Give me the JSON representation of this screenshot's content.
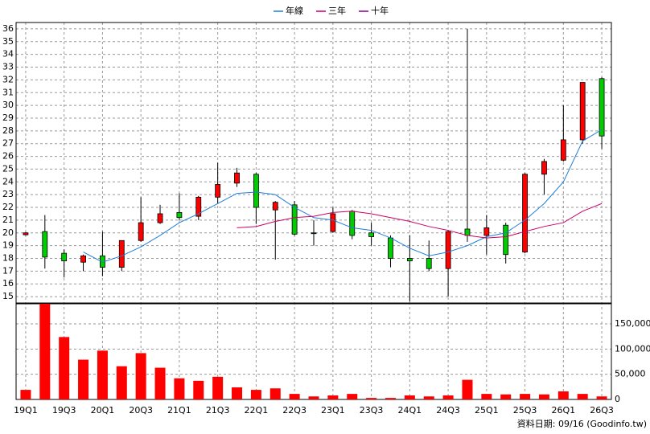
{
  "chart_data": [
    {
      "type": "candlestick",
      "categories": [
        "19Q1",
        null,
        "19Q3",
        null,
        "20Q1",
        null,
        "20Q3",
        null,
        "21Q1",
        null,
        "21Q3",
        null,
        "22Q1",
        null,
        "22Q3",
        null,
        "23Q1",
        null,
        "23Q3",
        null,
        "24Q1",
        null,
        "24Q3",
        null,
        "25Q1",
        null,
        "25Q3",
        null,
        "26Q1",
        null,
        "26Q3"
      ],
      "open": [
        19.85,
        20.1,
        18.4,
        17.7,
        18.2,
        17.3,
        19.4,
        20.8,
        21.6,
        21.3,
        22.8,
        23.9,
        24.6,
        21.8,
        22.2,
        20.0,
        20.1,
        21.7,
        20.0,
        19.6,
        18.0,
        18.0,
        17.2,
        20.3,
        19.8,
        20.6,
        18.5,
        24.6,
        25.7,
        27.3,
        32.1
      ],
      "high": [
        20.05,
        21.4,
        18.7,
        18.3,
        20.1,
        19.4,
        22.8,
        22.2,
        23.1,
        22.9,
        25.5,
        25.1,
        24.7,
        22.5,
        22.5,
        21.0,
        22.0,
        21.8,
        20.8,
        19.8,
        19.8,
        19.4,
        20.2,
        36.0,
        21.4,
        20.8,
        24.7,
        25.8,
        30.0,
        31.8,
        32.2
      ],
      "low": [
        19.8,
        17.2,
        16.5,
        17.0,
        16.6,
        17.0,
        19.3,
        20.7,
        21.0,
        21.0,
        22.3,
        23.6,
        20.7,
        17.9,
        19.8,
        19.0,
        20.0,
        19.5,
        19.0,
        17.3,
        14.6,
        17.0,
        15.0,
        19.3,
        18.3,
        17.6,
        18.4,
        23.0,
        25.6,
        27.0,
        26.6
      ],
      "close": [
        20.0,
        18.1,
        17.8,
        18.2,
        17.3,
        19.4,
        20.8,
        21.5,
        21.2,
        22.8,
        23.8,
        24.7,
        22.0,
        22.4,
        19.9,
        19.95,
        21.5,
        19.8,
        19.7,
        18.0,
        17.8,
        17.2,
        20.1,
        19.8,
        20.4,
        18.3,
        24.6,
        25.6,
        27.3,
        31.8,
        27.6
      ],
      "up_color": "#ff0000",
      "down_color": "#00cc00",
      "series": [
        {
          "name": "年線",
          "color": "#1e7fd8",
          "values": [
            null,
            null,
            null,
            18.5,
            17.7,
            18.2,
            18.9,
            19.8,
            20.8,
            21.5,
            22.3,
            23.1,
            23.2,
            23.0,
            22.0,
            21.2,
            21.0,
            20.4,
            20.2,
            19.6,
            18.8,
            18.2,
            18.5,
            19.0,
            19.7,
            20.0,
            21.0,
            22.3,
            24.0,
            27.2,
            28.1
          ]
        },
        {
          "name": "三年",
          "color": "#cc0066",
          "values": [
            null,
            null,
            null,
            null,
            null,
            null,
            null,
            null,
            null,
            null,
            null,
            20.4,
            20.5,
            20.9,
            21.2,
            21.3,
            21.6,
            21.7,
            21.5,
            21.2,
            20.9,
            20.5,
            20.2,
            19.8,
            19.6,
            19.7,
            20.1,
            20.5,
            20.8,
            21.7,
            22.3
          ]
        },
        {
          "name": "十年",
          "color": "#880088",
          "values": [
            null,
            null,
            null,
            null,
            null,
            null,
            null,
            null,
            null,
            null,
            null,
            null,
            null,
            null,
            null,
            null,
            null,
            null,
            null,
            null,
            null,
            null,
            null,
            null,
            null,
            null,
            null,
            null,
            null,
            null,
            null
          ]
        }
      ],
      "ylim": [
        14.5,
        36.5
      ],
      "yticks": [
        15,
        16,
        17,
        18,
        19,
        20,
        21,
        22,
        23,
        24,
        25,
        26,
        27,
        28,
        29,
        30,
        31,
        32,
        33,
        34,
        35,
        36
      ],
      "grid": true
    },
    {
      "type": "bar",
      "values": [
        19000,
        190000,
        124000,
        79000,
        97000,
        66000,
        92000,
        63000,
        42000,
        37000,
        45000,
        24000,
        19000,
        22000,
        11000,
        6000,
        8000,
        11000,
        3000,
        3000,
        8000,
        6000,
        8000,
        39000,
        11000,
        10000,
        11000,
        10000,
        16000,
        11000,
        6000
      ],
      "color": "#ff0000",
      "ylim": [
        0,
        190000
      ],
      "yticks": [
        0,
        {
          "value": 50000,
          "label": "50,000"
        },
        {
          "value": 100000,
          "label": "100,000"
        },
        {
          "value": 150000,
          "label": "150,000"
        }
      ],
      "grid": true,
      "note": "資料日期: 09/16 (Goodinfo.tw)"
    }
  ]
}
